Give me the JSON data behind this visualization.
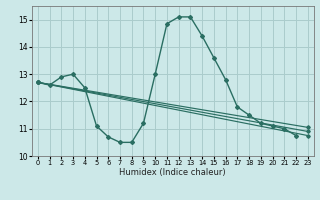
{
  "xlabel": "Humidex (Indice chaleur)",
  "ylabel": "",
  "bg_color": "#cce8e8",
  "grid_color": "#aacccc",
  "line_color": "#2a6e62",
  "xlim": [
    -0.5,
    23.5
  ],
  "ylim": [
    10,
    15.5
  ],
  "xticks": [
    0,
    1,
    2,
    3,
    4,
    5,
    6,
    7,
    8,
    9,
    10,
    11,
    12,
    13,
    14,
    15,
    16,
    17,
    18,
    19,
    20,
    21,
    22,
    23
  ],
  "yticks": [
    10,
    11,
    12,
    13,
    14,
    15
  ],
  "series": [
    {
      "x": [
        0,
        1,
        2,
        3,
        4,
        5,
        6,
        7,
        8,
        9,
        10,
        11,
        12,
        13,
        14,
        15,
        16,
        17,
        18,
        19,
        20,
        21,
        22
      ],
      "y": [
        12.7,
        12.6,
        12.9,
        13.0,
        12.5,
        11.1,
        10.7,
        10.5,
        10.5,
        11.2,
        13.0,
        14.85,
        15.1,
        15.1,
        14.4,
        13.6,
        12.8,
        11.8,
        11.5,
        11.2,
        11.1,
        11.0,
        10.75
      ]
    },
    {
      "x": [
        0,
        23
      ],
      "y": [
        12.7,
        10.75
      ]
    },
    {
      "x": [
        0,
        23
      ],
      "y": [
        12.7,
        10.9
      ]
    },
    {
      "x": [
        0,
        23
      ],
      "y": [
        12.7,
        11.05
      ]
    }
  ]
}
